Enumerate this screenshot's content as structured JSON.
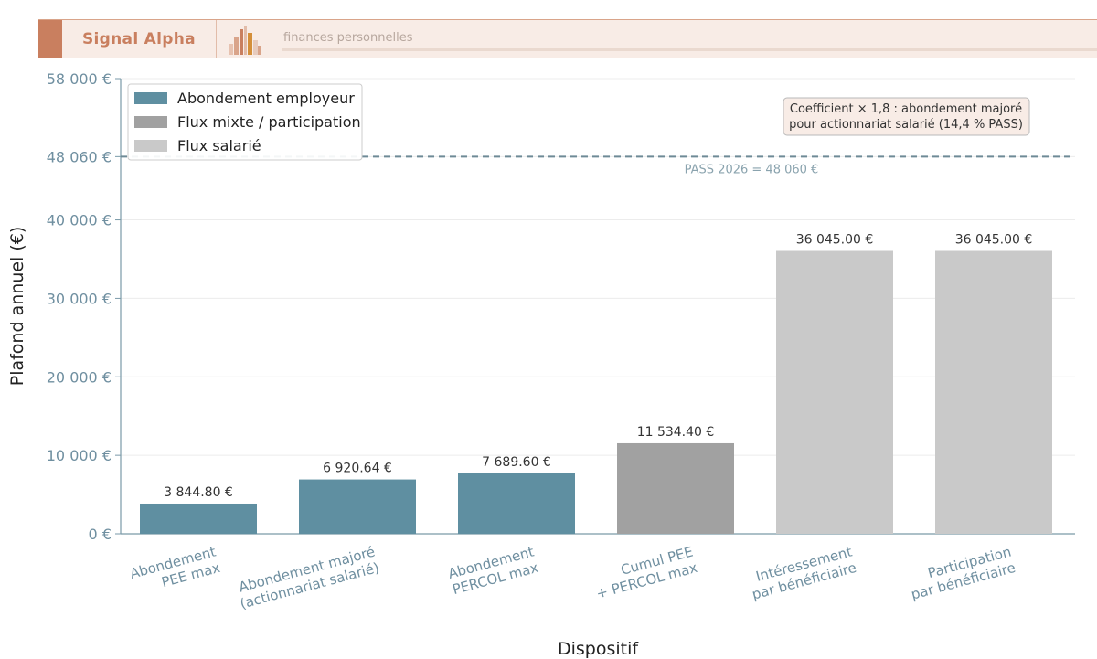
{
  "header": {
    "brand": "Signal Alpha",
    "tagline": "finances personnelles"
  },
  "colors": {
    "employer": "#5f8fa1",
    "mixed": "#a1a1a1",
    "employee": "#c9c9c9",
    "axis": "#7a9aa8",
    "tick_label": "#6f8fa0",
    "pass_line": "#6e8a96"
  },
  "chart_data": {
    "type": "bar",
    "xlabel": "Dispositif",
    "ylabel": "Plafond annuel (€)",
    "ylim": [
      0,
      58000
    ],
    "y_ticks": [
      {
        "value": 0,
        "label": "0 €"
      },
      {
        "value": 10000,
        "label": "10 000 €"
      },
      {
        "value": 20000,
        "label": "20 000 €"
      },
      {
        "value": 30000,
        "label": "30 000 €"
      },
      {
        "value": 40000,
        "label": "40 000 €"
      },
      {
        "value": 48060,
        "label": "48 060 €"
      },
      {
        "value": 58000,
        "label": "58 000 €"
      }
    ],
    "grid": true,
    "legend_position": "top-left",
    "legend": [
      {
        "label": "Abondement employeur",
        "group": "employer"
      },
      {
        "label": "Flux mixte / participation",
        "group": "mixed"
      },
      {
        "label": "Flux salarié",
        "group": "employee"
      }
    ],
    "bars": [
      {
        "category": [
          "Abondement",
          "PEE max"
        ],
        "value": 3844.8,
        "value_label": "3 844.80 €",
        "group": "employer"
      },
      {
        "category": [
          "Abondement majoré",
          "(actionnariat salarié)"
        ],
        "value": 6920.64,
        "value_label": "6 920.64 €",
        "group": "employer"
      },
      {
        "category": [
          "Abondement",
          "PERCOL max"
        ],
        "value": 7689.6,
        "value_label": "7 689.60 €",
        "group": "employer"
      },
      {
        "category": [
          "Cumul PEE",
          "+ PERCOL max"
        ],
        "value": 11534.4,
        "value_label": "11 534.40 €",
        "group": "mixed"
      },
      {
        "category": [
          "Intéressement",
          "par bénéficiaire"
        ],
        "value": 36045.0,
        "value_label": "36 045.00 €",
        "group": "employee"
      },
      {
        "category": [
          "Participation",
          "par bénéficiaire"
        ],
        "value": 36045.0,
        "value_label": "36 045.00 €",
        "group": "employee"
      }
    ],
    "reference_line": {
      "value": 48060,
      "label": "PASS 2026 = 48 060 €"
    },
    "annotation": {
      "lines": [
        "Coefficient × 1,8 : abondement majoré",
        "pour actionnariat salarié (14,4 % PASS)"
      ]
    }
  }
}
